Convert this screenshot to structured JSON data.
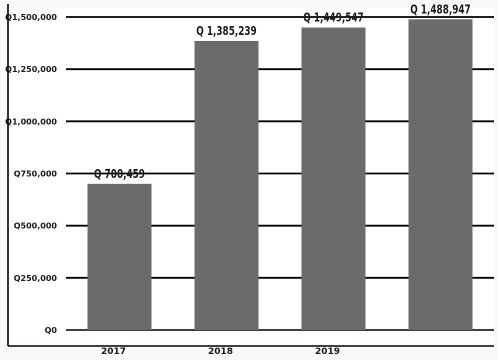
{
  "chart_data": {
    "type": "bar",
    "categories": [
      "2017",
      "2018",
      "2019",
      ""
    ],
    "values": [
      700459,
      1385239,
      1449547,
      1488947
    ],
    "data_labels": [
      "Q 700,459",
      "Q 1,385,239",
      "Q 1,449,547",
      "Q 1,488,947"
    ],
    "y_ticks": [
      0,
      250000,
      500000,
      750000,
      1000000,
      1250000,
      1500000
    ],
    "y_tick_labels": [
      "Q0",
      "Q250,000",
      "Q500,000",
      "Q750,000",
      "Q1,000,000",
      "Q1,250,000",
      "Q1,500,000"
    ],
    "ylim": [
      0,
      1500000
    ],
    "grid": true,
    "legend": "none",
    "bar_color": "#6b6b6b",
    "background_color": "#f7f9fb",
    "grid_color": "#000000"
  }
}
